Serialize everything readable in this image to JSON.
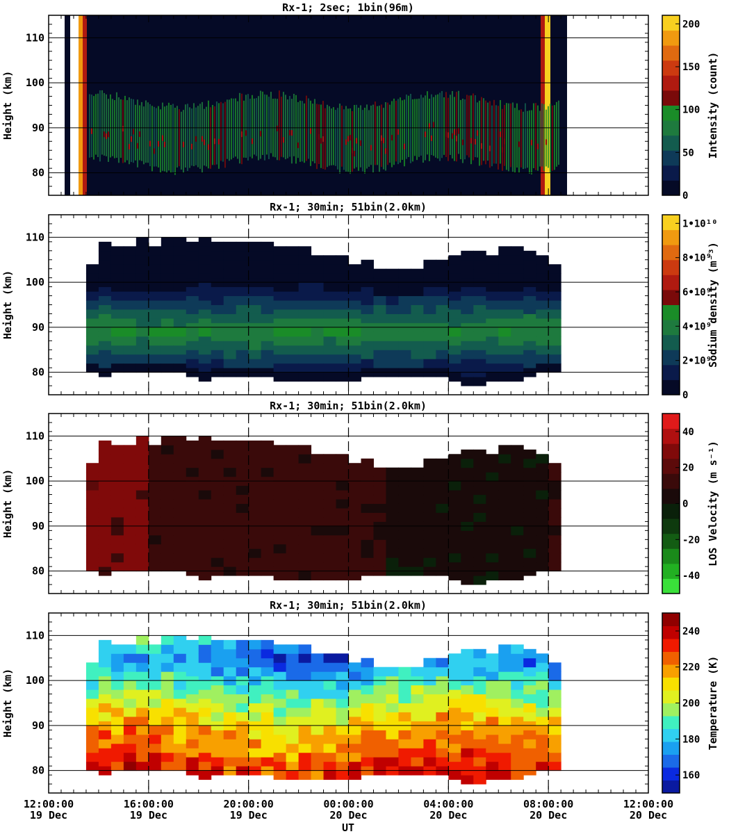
{
  "figure": {
    "x_ticks": [
      {
        "time": "12:00:00",
        "day": "19 Dec"
      },
      {
        "time": "16:00:00",
        "day": "19 Dec"
      },
      {
        "time": "20:00:00",
        "day": "19 Dec"
      },
      {
        "time": "00:00:00",
        "day": "20 Dec"
      },
      {
        "time": "04:00:00",
        "day": "20 Dec"
      },
      {
        "time": "08:00:00",
        "day": "20 Dec"
      },
      {
        "time": "12:00:00",
        "day": "20 Dec"
      }
    ],
    "xlabel": "UT",
    "ylabel": "Height (km)"
  },
  "chart_data": [
    {
      "type": "heatmap",
      "title": "Rx-1;  2sec; 1bin(96m)",
      "xlabel": "UT",
      "ylabel": "Height (km)",
      "xlim_hours": [
        0,
        24
      ],
      "ylim": [
        75,
        115
      ],
      "y_ticks": [
        80,
        90,
        100,
        110
      ],
      "data_x_range_hours": [
        1.5,
        20.5
      ],
      "layer_peak_km": 88,
      "layer_band_km": [
        83,
        95
      ],
      "colorbar": {
        "label": "Intensity (count)",
        "min": 0,
        "max": 210,
        "ticks": [
          "0",
          "50",
          "100",
          "150",
          "200"
        ],
        "tick_values": [
          0,
          50,
          100,
          150,
          200
        ],
        "colors": [
          "#050a26",
          "#0a1a4a",
          "#0e3a58",
          "#135c4e",
          "#1e7a3e",
          "#1a8c28",
          "#7a0a0a",
          "#b01a10",
          "#cc3a10",
          "#e06a10",
          "#f09a10",
          "#f8d020"
        ]
      }
    },
    {
      "type": "heatmap",
      "title": "Rx-1; 30min; 51bin(2.0km)",
      "xlabel": "UT",
      "ylabel": "Height (km)",
      "xlim_hours": [
        0,
        24
      ],
      "ylim": [
        75,
        115
      ],
      "y_ticks": [
        80,
        90,
        100,
        110
      ],
      "colorbar": {
        "label": "Sodium density (m⁻³)",
        "min": 0,
        "max": 10500000000.0,
        "ticks": [
          "0",
          "2•10⁹",
          "4•10⁹",
          "6•10⁹",
          "8•10⁹",
          "1•10¹⁰"
        ],
        "tick_values": [
          0,
          2000000000.0,
          4000000000.0,
          6000000000.0,
          8000000000.0,
          10000000000.0
        ],
        "colors": [
          "#050a26",
          "#0a1a4a",
          "#0e3a58",
          "#135c4e",
          "#1e7a3e",
          "#1a8c28",
          "#7a0a0a",
          "#b01a10",
          "#cc3a10",
          "#e06a10",
          "#f09a10",
          "#f8d020"
        ]
      },
      "layer_peak_km": 89,
      "columns_x_hours": [
        1.5,
        2.0,
        2.5,
        3.0,
        3.5,
        4.0,
        4.5,
        5.0,
        5.5,
        6.0,
        6.5,
        7.0,
        7.5,
        8.0,
        8.5,
        9.0,
        9.5,
        10.0,
        10.5,
        11.0,
        11.5,
        12.0,
        12.5,
        13.0,
        13.5,
        14.0,
        14.5,
        15.0,
        15.5,
        16.0,
        16.5,
        17.0,
        17.5,
        18.0,
        18.5,
        19.0,
        19.5,
        20.0
      ],
      "top_km": [
        103,
        108,
        108,
        108,
        109,
        108,
        109,
        109,
        109,
        110,
        109,
        109,
        109,
        108,
        108,
        108,
        107,
        107,
        106,
        105,
        105,
        104,
        104,
        103,
        103,
        103,
        103,
        104,
        105,
        105,
        106,
        106,
        106,
        107,
        107,
        106,
        105,
        103
      ],
      "bottom_km": [
        80,
        79,
        80,
        80,
        80,
        80,
        80,
        80,
        79,
        78,
        79,
        79,
        79,
        79,
        79,
        78,
        78,
        78,
        78,
        78,
        78,
        78,
        79,
        79,
        79,
        79,
        79,
        79,
        79,
        78,
        77,
        77,
        78,
        78,
        78,
        79,
        80,
        80
      ]
    },
    {
      "type": "heatmap",
      "title": "Rx-1; 30min; 51bin(2.0km)",
      "xlabel": "UT",
      "ylabel": "Height (km)",
      "xlim_hours": [
        0,
        24
      ],
      "ylim": [
        75,
        115
      ],
      "y_ticks": [
        80,
        90,
        100,
        110
      ],
      "colorbar": {
        "label": "LOS Velocity (m s⁻¹)",
        "min": -50,
        "max": 50,
        "ticks": [
          "-40",
          "-20",
          "0",
          "20",
          "40"
        ],
        "tick_values": [
          -40,
          -20,
          0,
          20,
          40
        ],
        "colors": [
          "#3ae03a",
          "#22b022",
          "#1a8a1a",
          "#135c13",
          "#0e3a0e",
          "#0a200a",
          "#1a0a0a",
          "#3a0a0a",
          "#5c0a0a",
          "#800a0a",
          "#b01010",
          "#e01a1a"
        ]
      },
      "column_velocity_ms": [
        28,
        26,
        26,
        26,
        26,
        14,
        14,
        14,
        14,
        14,
        14,
        14,
        14,
        14,
        14,
        14,
        14,
        14,
        14,
        14,
        14,
        14,
        14,
        14,
        8,
        8,
        8,
        8,
        8,
        8,
        8,
        8,
        8,
        8,
        8,
        8,
        8,
        14
      ]
    },
    {
      "type": "heatmap",
      "title": "Rx-1; 30min; 51bin(2.0km)",
      "xlabel": "UT",
      "ylabel": "Height (km)",
      "xlim_hours": [
        0,
        24
      ],
      "ylim": [
        75,
        115
      ],
      "y_ticks": [
        80,
        90,
        100,
        110
      ],
      "colorbar": {
        "label": "Temperature (K)",
        "min": 150,
        "max": 250,
        "ticks": [
          "160",
          "180",
          "200",
          "220",
          "240"
        ],
        "tick_values": [
          160,
          180,
          200,
          220,
          240
        ],
        "colors": [
          "#0a1aa0",
          "#0a2ae0",
          "#1a6ae8",
          "#1aa0f0",
          "#30d0f0",
          "#40f0c0",
          "#a0f060",
          "#e0f020",
          "#f8e000",
          "#f8a000",
          "#f06000",
          "#f01a00",
          "#c00000",
          "#900000"
        ]
      },
      "profile_km": [
        80,
        85,
        90,
        95,
        100,
        105,
        110
      ],
      "profile_K": [
        232,
        222,
        214,
        200,
        184,
        168,
        190
      ]
    }
  ]
}
